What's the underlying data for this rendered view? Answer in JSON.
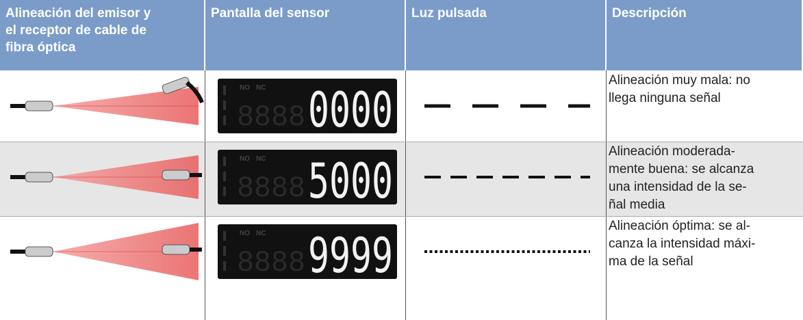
{
  "header": [
    [
      "Alineación del emisor y",
      "el receptor de cable de",
      "fibra óptica"
    ],
    [
      "Pantalla del sensor"
    ],
    [
      "Luz pulsada"
    ],
    [
      "Descripción"
    ]
  ],
  "rows": [
    {
      "display": {
        "indicators": [
          "NO",
          "NC"
        ],
        "digits": "0000"
      },
      "description": [
        "Alineación muy mala: no",
        "llega ninguna señal"
      ]
    },
    {
      "display": {
        "indicators": [
          "NO",
          "NC"
        ],
        "digits": "5000"
      },
      "description": [
        "Alineación moderada-",
        "mente buena: se alcanza",
        "una intensidad de la se-",
        "ñal media"
      ]
    },
    {
      "display": {
        "indicators": [
          "NO",
          "NC"
        ],
        "digits": "9999"
      },
      "description": [
        "Alineación óptima: se al-",
        "canza la intensidad máxi-",
        "ma de la señal"
      ]
    }
  ]
}
